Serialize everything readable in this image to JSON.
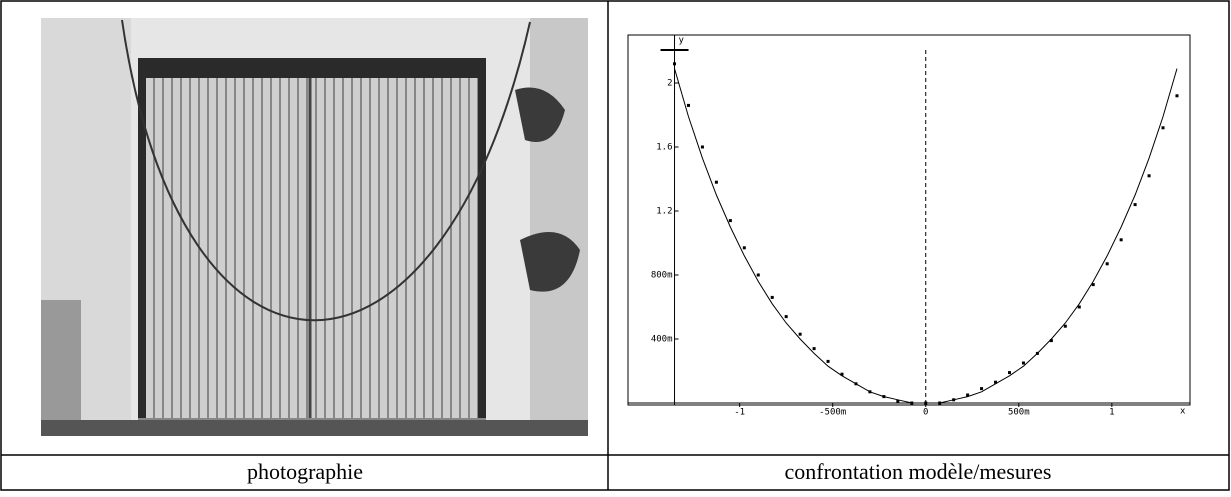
{
  "table": {
    "captions": [
      "photographie",
      "confrontation modèle/mesures"
    ]
  },
  "chart_data": {
    "type": "line",
    "x_label": "x",
    "y_label": "y",
    "x": [
      -1.35,
      -1.275,
      -1.2,
      -1.125,
      -1.05,
      -0.975,
      -0.9,
      -0.825,
      -0.75,
      -0.675,
      -0.6,
      -0.525,
      -0.45,
      -0.375,
      -0.3,
      -0.225,
      -0.15,
      -0.075,
      0,
      0.075,
      0.15,
      0.225,
      0.3,
      0.375,
      0.45,
      0.525,
      0.6,
      0.675,
      0.75,
      0.825,
      0.9,
      0.975,
      1.05,
      1.125,
      1.2,
      1.275,
      1.35
    ],
    "series": [
      {
        "color": "#000000",
        "style": "line",
        "values": [
          2.09,
          1.79,
          1.53,
          1.3,
          1.1,
          0.92,
          0.76,
          0.62,
          0.5,
          0.4,
          0.31,
          0.23,
          0.17,
          0.12,
          0.07,
          0.04,
          0.02,
          0.0,
          0,
          0.0,
          0.02,
          0.04,
          0.07,
          0.12,
          0.17,
          0.23,
          0.31,
          0.4,
          0.5,
          0.62,
          0.76,
          0.92,
          1.1,
          1.3,
          1.53,
          1.79,
          2.09
        ]
      },
      {
        "color": "#000000",
        "style": "points",
        "values": [
          2.12,
          1.86,
          1.6,
          1.38,
          1.14,
          0.97,
          0.8,
          0.66,
          0.54,
          0.43,
          0.34,
          0.26,
          0.18,
          0.12,
          0.07,
          0.04,
          0.01,
          0.0,
          0,
          0.0,
          0.02,
          0.05,
          0.09,
          0.13,
          0.19,
          0.25,
          0.31,
          0.39,
          0.48,
          0.6,
          0.74,
          0.87,
          1.02,
          1.24,
          1.42,
          1.72,
          1.92
        ]
      }
    ],
    "xlim": [
      -1.6,
      1.42
    ],
    "ylim": [
      0,
      2.3
    ],
    "xticks": [
      {
        "value": -1,
        "label": "-1"
      },
      {
        "value": -0.5,
        "label": "-500m"
      },
      0,
      {
        "value": 0.5,
        "label": "500m"
      },
      1
    ],
    "yticks": [
      {
        "value": 0.4,
        "label": "400m"
      },
      {
        "value": 0.8,
        "label": "800m"
      },
      1.2,
      1.6,
      2
    ]
  }
}
